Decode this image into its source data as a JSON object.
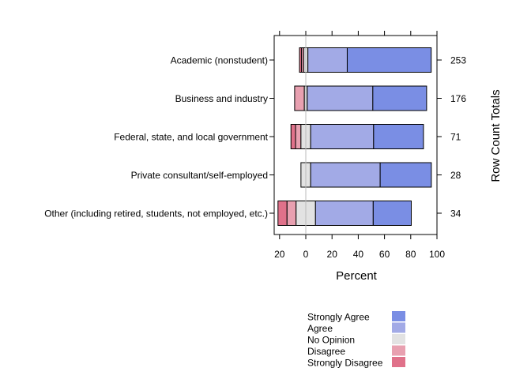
{
  "chart_data": {
    "type": "bar",
    "orientation": "horizontal",
    "subtype": "diverging-stacked",
    "categories": [
      "Academic (nonstudent)",
      "Business and industry",
      "Federal, state, and local government",
      "Private consultant/self-employed",
      "Other (including retired, students, not employed, etc.)"
    ],
    "row_totals": [
      "253",
      "176",
      "71",
      "28",
      "34"
    ],
    "series": [
      {
        "name": "Strongly Disagree",
        "color": "#E0718A",
        "values": [
          1.6,
          0,
          3.5,
          0,
          6.9
        ]
      },
      {
        "name": "Disagree",
        "color": "#E8A0B0",
        "values": [
          1.6,
          7.4,
          4.1,
          0,
          6.9
        ]
      },
      {
        "name": "No Opinion",
        "color": "#E2E2E2",
        "values": [
          3.2,
          2.2,
          7.4,
          7.4,
          14.8
        ]
      },
      {
        "name": "Agree",
        "color": "#A2AAE6",
        "values": [
          30,
          50,
          48,
          53,
          44
        ]
      },
      {
        "name": "Strongly Agree",
        "color": "#7A8EE4",
        "values": [
          64,
          41,
          38,
          39,
          29
        ]
      }
    ],
    "xlabel": "Percent",
    "right_label": "Row Count Totals",
    "xlim": [
      -22,
      100
    ],
    "x_ticks": [
      -20,
      0,
      20,
      40,
      60,
      80,
      100
    ],
    "x_tick_labels": [
      "20",
      "0",
      "20",
      "40",
      "60",
      "80",
      "100"
    ],
    "legend_position": "bottom",
    "legend_order": [
      "Strongly Agree",
      "Agree",
      "No Opinion",
      "Disagree",
      "Strongly Disagree"
    ],
    "grid": false
  }
}
